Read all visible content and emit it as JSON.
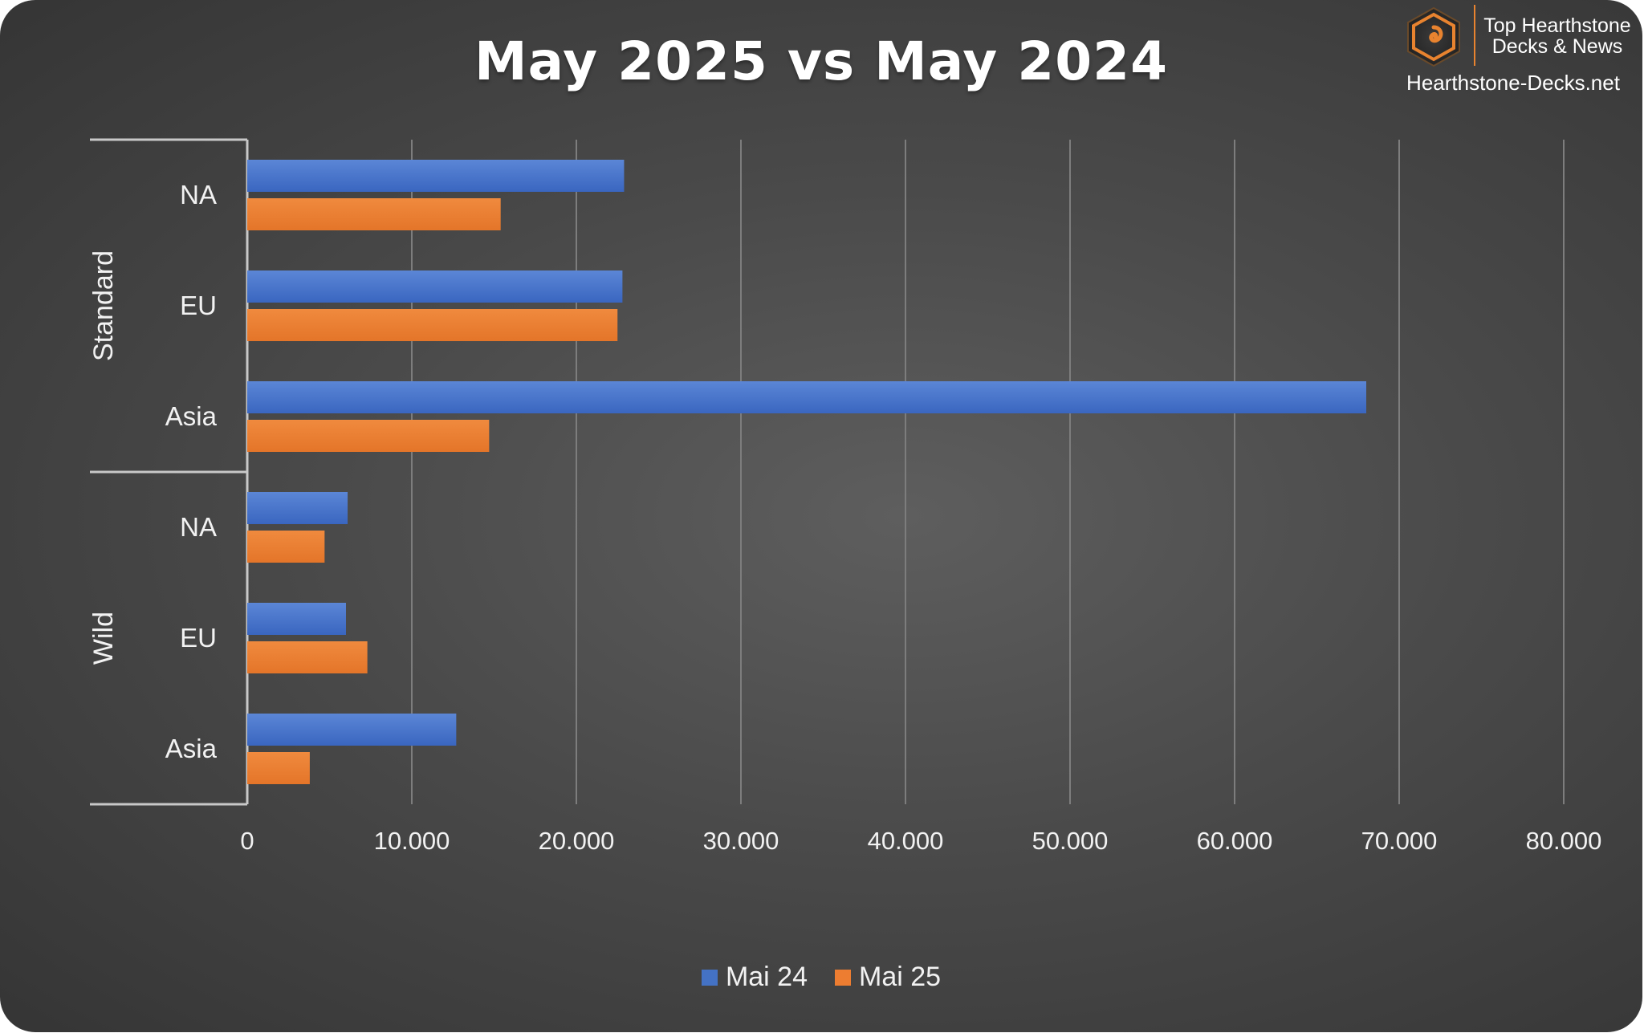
{
  "chart_data": {
    "type": "bar",
    "orientation": "horizontal",
    "title": "May 2025 vs May 2024",
    "groups": [
      {
        "name": "Standard",
        "categories": [
          "NA",
          "EU",
          "Asia"
        ]
      },
      {
        "name": "Wild",
        "categories": [
          "NA",
          "EU",
          "Asia"
        ]
      }
    ],
    "series": [
      {
        "name": "Mai 24",
        "color": "#4472c4",
        "values": [
          22900,
          22800,
          68000,
          6100,
          6000,
          12700
        ]
      },
      {
        "name": "Mai 25",
        "color": "#ed7d31",
        "values": [
          15400,
          22500,
          14700,
          4700,
          7300,
          3800
        ]
      }
    ],
    "xlim": [
      0,
      80000
    ],
    "xticks": [
      0,
      10000,
      20000,
      30000,
      40000,
      50000,
      60000,
      70000,
      80000
    ],
    "xtick_labels": [
      "0",
      "10.000",
      "20.000",
      "30.000",
      "40.000",
      "50.000",
      "60.000",
      "70.000",
      "80.000"
    ],
    "grid": true,
    "legend_position": "bottom"
  },
  "branding": {
    "line1": "Top Hearthstone",
    "line2": "Decks & News",
    "site": "Hearthstone-Decks.net",
    "logo_icon": "hearthstone-swirl-icon",
    "accent": "#e8832f"
  }
}
